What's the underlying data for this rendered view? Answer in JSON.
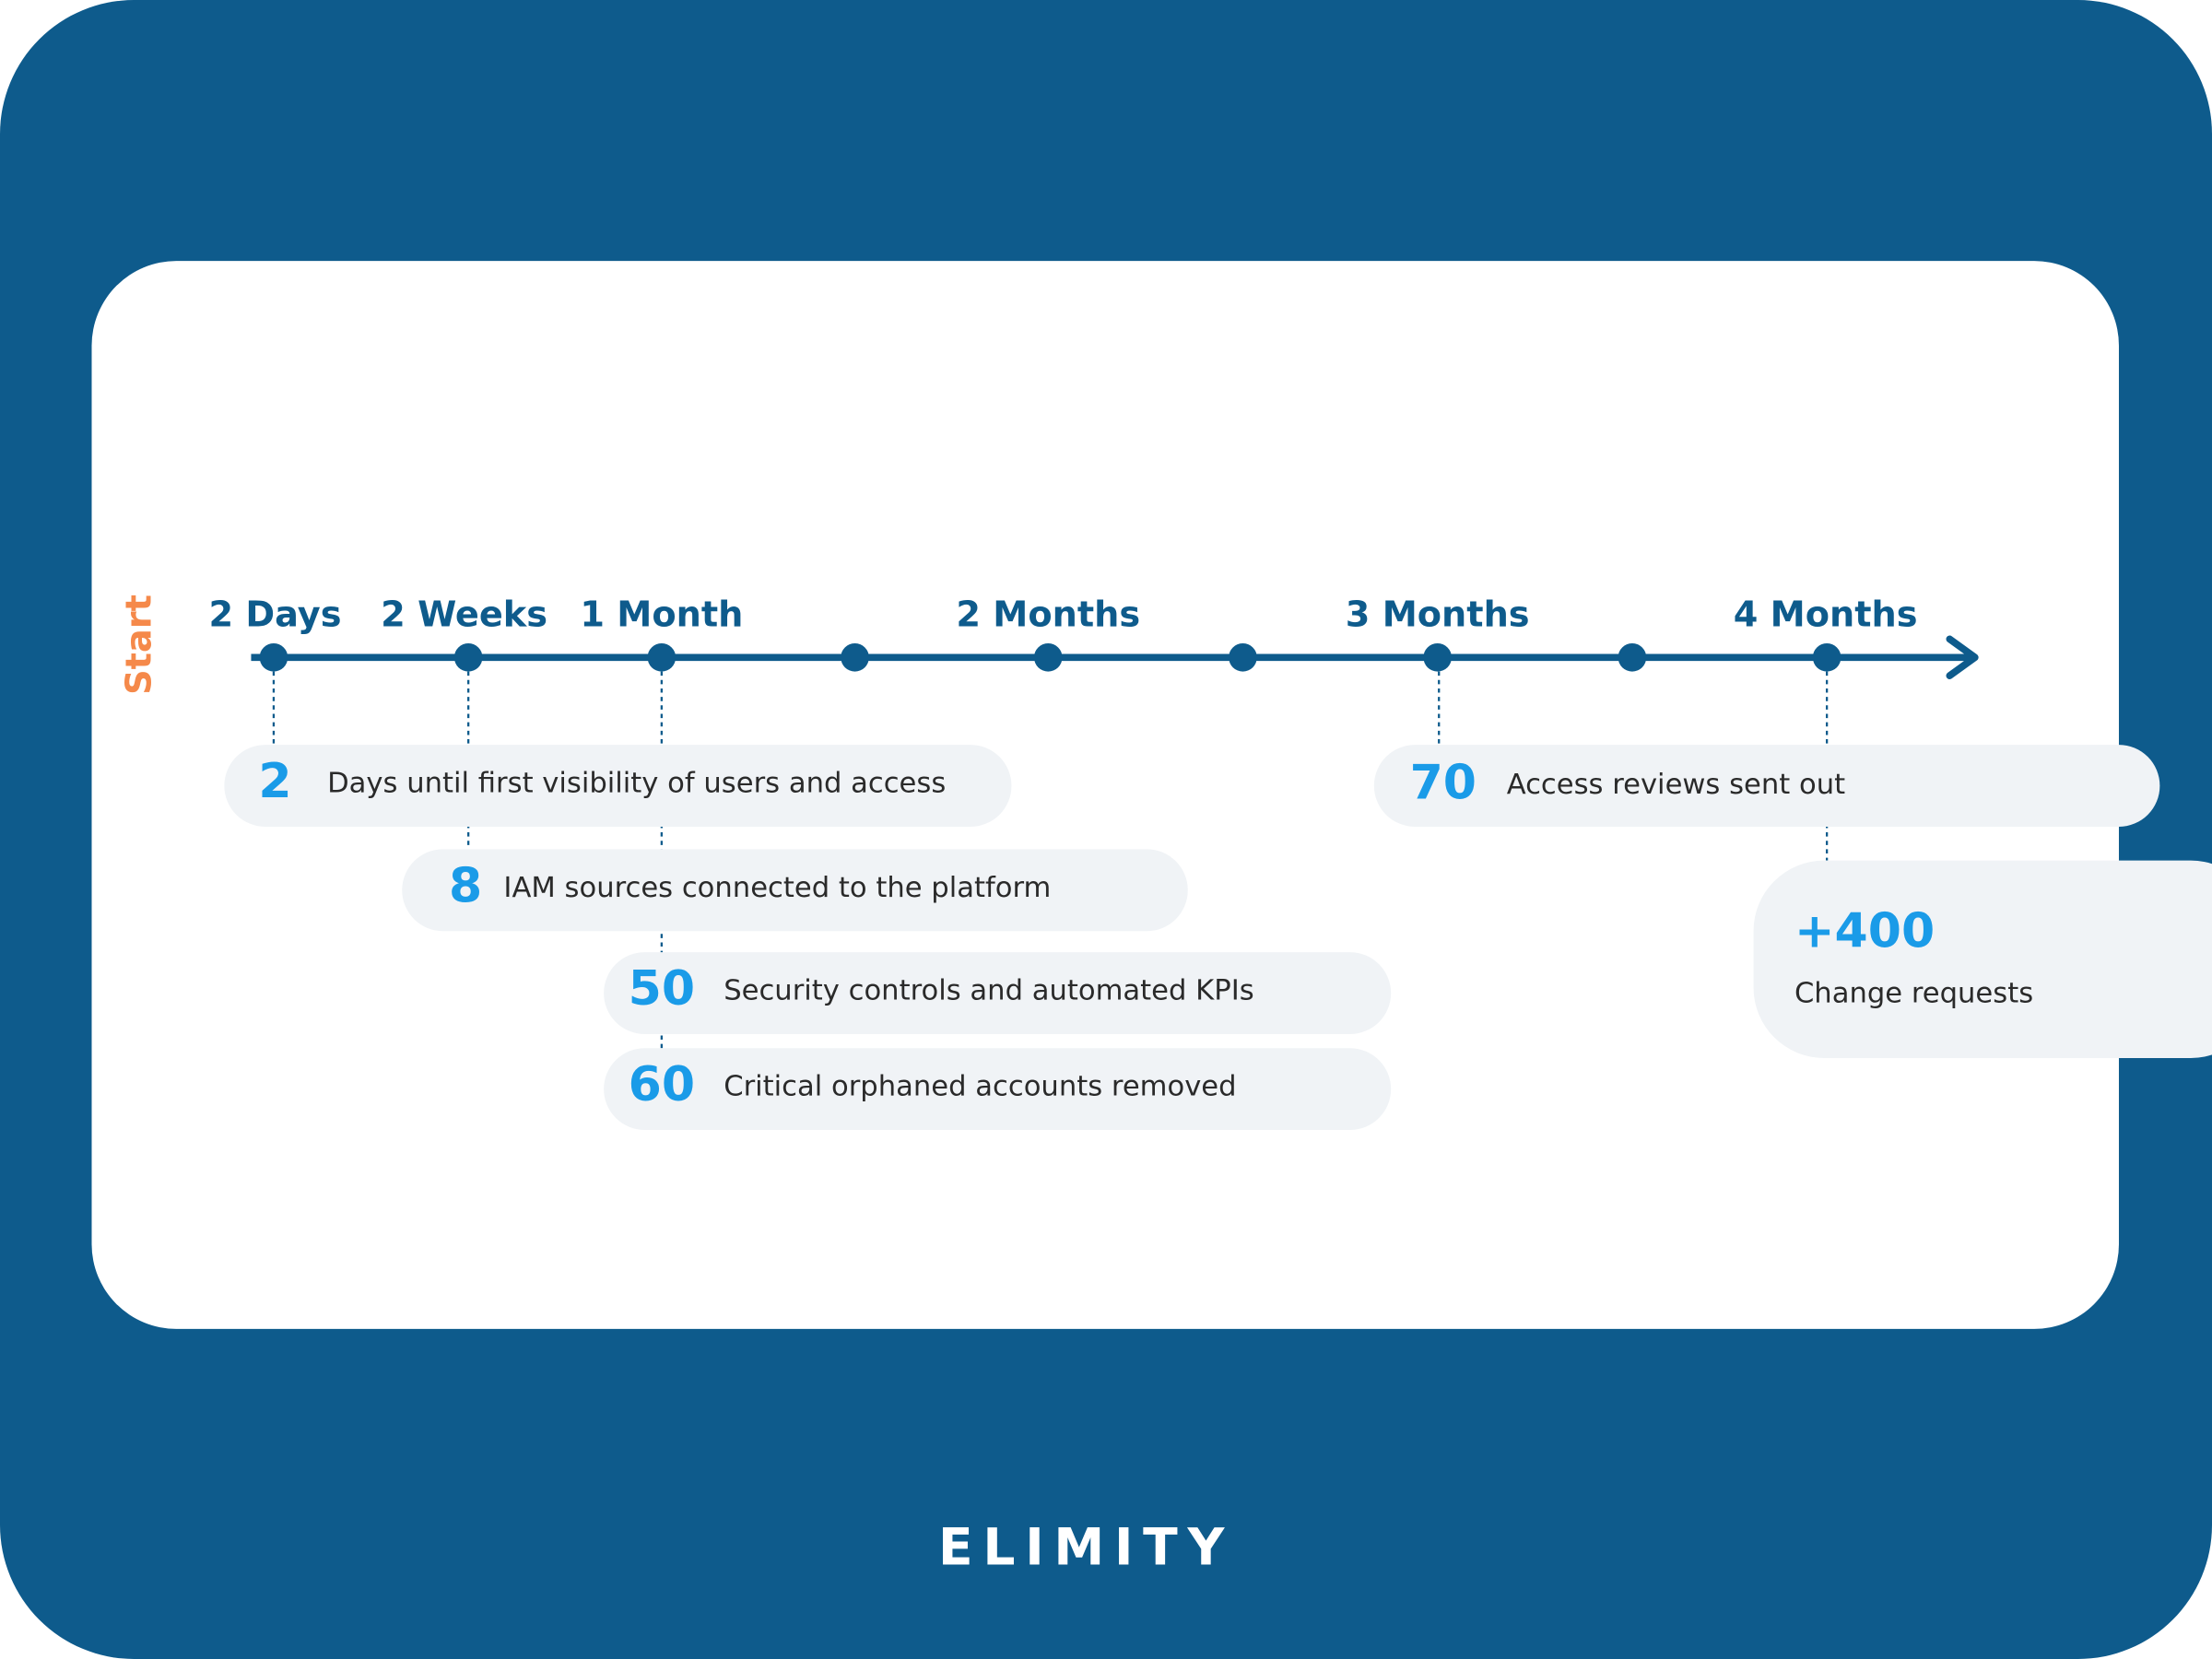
{
  "start": "Start",
  "timeline": {
    "labels": [
      "2 Days",
      "2 Weeks",
      "1 Month",
      "2 Months",
      "3 Months",
      "4 Months"
    ]
  },
  "milestones": [
    {
      "number": "2",
      "text": "Days until first visibility of users and access"
    },
    {
      "number": "8",
      "text": "IAM sources connected to the platform"
    },
    {
      "number": "50",
      "text": "Security controls and automated KPIs"
    },
    {
      "number": "60",
      "text": "Critical orphaned accounts removed"
    },
    {
      "number": "70",
      "text": "Access reviews sent out"
    },
    {
      "number": "+400",
      "text": "Change requests"
    }
  ],
  "brand": "ELIMITY"
}
